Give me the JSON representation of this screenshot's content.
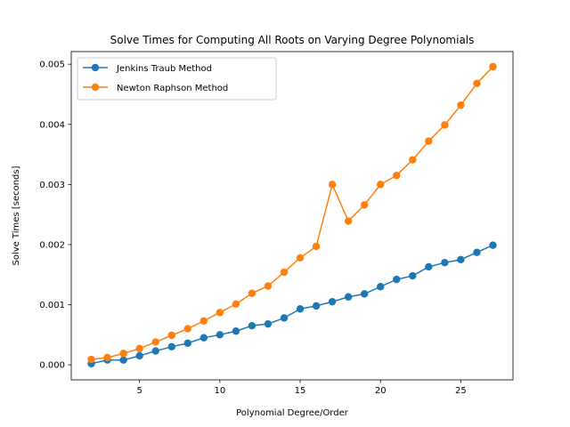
{
  "chart_data": {
    "type": "line",
    "title": "Solve Times for Computing All Roots on Varying Degree Polynomials",
    "xlabel": "Polynomial Degree/Order",
    "ylabel": "Solve Times [seconds]",
    "xlim": [
      0.75,
      28.25
    ],
    "ylim": [
      -0.00025,
      0.00521
    ],
    "xticks": [
      5,
      10,
      15,
      20,
      25
    ],
    "xtick_labels": [
      "5",
      "10",
      "15",
      "20",
      "25"
    ],
    "yticks": [
      0.0,
      0.001,
      0.002,
      0.003,
      0.004,
      0.005
    ],
    "ytick_labels": [
      "0.000",
      "0.001",
      "0.002",
      "0.003",
      "0.004",
      "0.005"
    ],
    "grid": false,
    "legend_position": "top-left",
    "x": [
      2,
      3,
      4,
      5,
      6,
      7,
      8,
      9,
      10,
      11,
      12,
      13,
      14,
      15,
      16,
      17,
      18,
      19,
      20,
      21,
      22,
      23,
      24,
      25,
      26,
      27
    ],
    "series": [
      {
        "name": "Jenkins Traub Method",
        "color": "#1f77b4",
        "marker": "circle",
        "values": [
          2e-05,
          8e-05,
          8e-05,
          0.00015,
          0.00023,
          0.0003,
          0.00036,
          0.00045,
          0.0005,
          0.00056,
          0.00065,
          0.00068,
          0.00078,
          0.00093,
          0.00098,
          0.00105,
          0.00113,
          0.00118,
          0.0013,
          0.00142,
          0.00148,
          0.00163,
          0.0017,
          0.00175,
          0.00187,
          0.00199
        ]
      },
      {
        "name": "Newton Raphson Method",
        "color": "#ff7f0e",
        "marker": "circle",
        "values": [
          9e-05,
          0.00012,
          0.00019,
          0.00027,
          0.00038,
          0.00049,
          0.0006,
          0.00073,
          0.00087,
          0.00101,
          0.00119,
          0.00131,
          0.00154,
          0.00178,
          0.00197,
          0.003,
          0.00239,
          0.00266,
          0.003,
          0.00315,
          0.00341,
          0.00372,
          0.00399,
          0.00432,
          0.00468,
          0.00496
        ]
      }
    ]
  }
}
